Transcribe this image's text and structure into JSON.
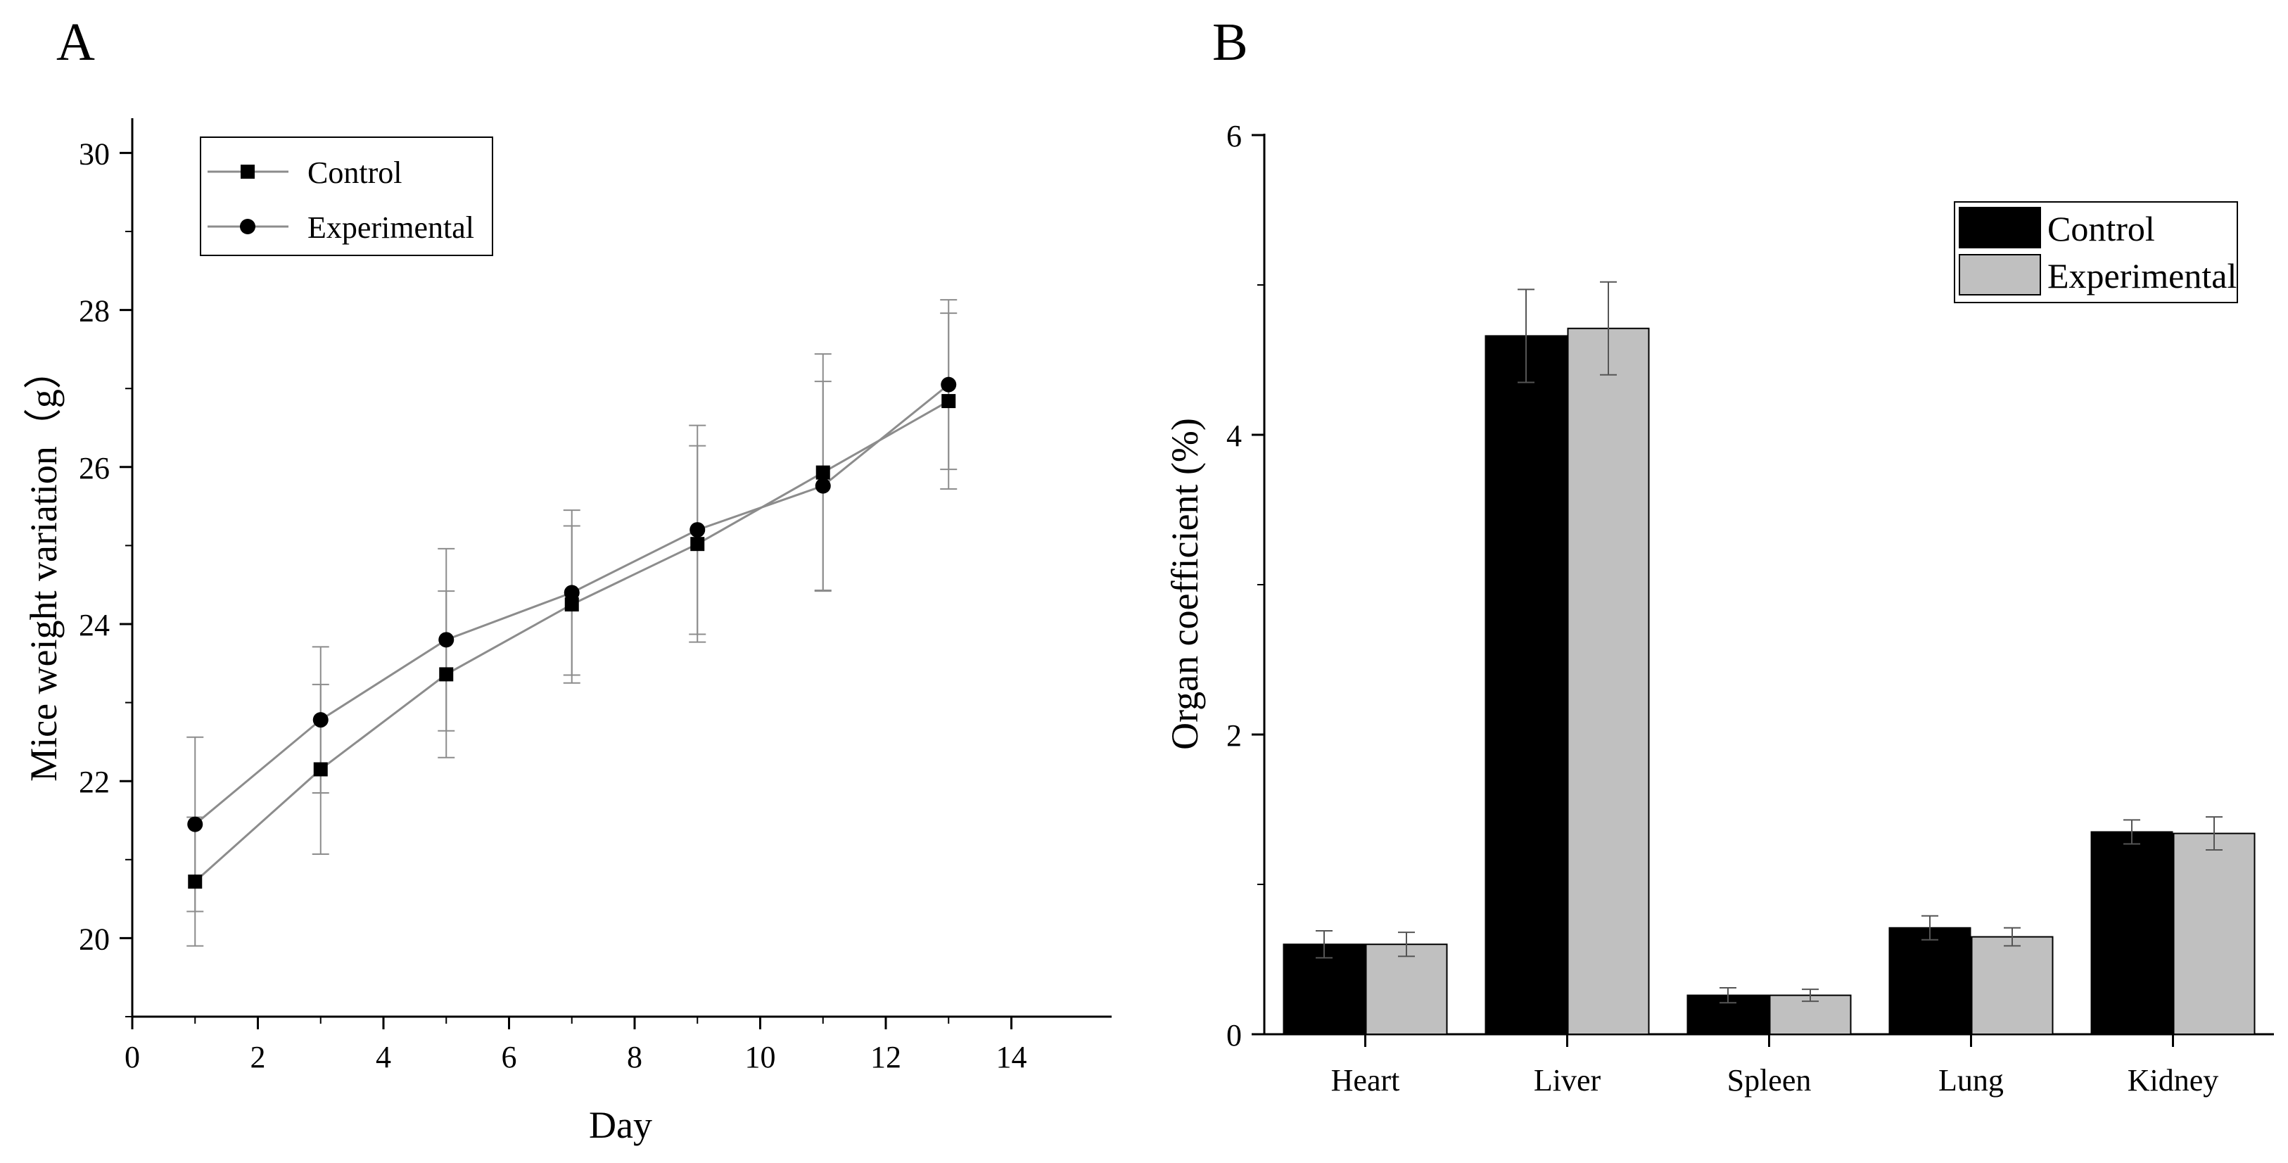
{
  "figure": {
    "panel_a_label": "A",
    "panel_b_label": "B"
  },
  "chart_data": [
    {
      "panel": "A",
      "type": "line",
      "xlabel": "Day",
      "ylabel": "Mice weight variation（g）",
      "xlim": [
        0,
        15
      ],
      "ylim": [
        19,
        30
      ],
      "xticks": [
        0,
        2,
        4,
        6,
        8,
        10,
        12,
        14
      ],
      "yticks": [
        20,
        22,
        24,
        26,
        28,
        30
      ],
      "legend_position": "top-left",
      "grid": false,
      "series": [
        {
          "name": "Control",
          "marker": "square",
          "x": [
            1,
            3,
            5,
            7,
            9,
            11,
            13
          ],
          "y": [
            20.72,
            22.15,
            23.36,
            24.25,
            25.02,
            25.93,
            26.84
          ],
          "err": [
            0.82,
            1.08,
            1.06,
            1.0,
            1.25,
            1.51,
            1.12
          ]
        },
        {
          "name": "Experimental",
          "marker": "circle",
          "x": [
            1,
            3,
            5,
            7,
            9,
            11,
            13
          ],
          "y": [
            21.45,
            22.78,
            23.8,
            24.4,
            25.2,
            25.76,
            27.05
          ],
          "err": [
            1.11,
            0.93,
            1.16,
            1.05,
            1.33,
            1.33,
            1.08
          ]
        }
      ]
    },
    {
      "panel": "B",
      "type": "bar",
      "xlabel": "",
      "ylabel": "Organ coefficient (%)",
      "ylim": [
        0,
        6
      ],
      "yticks": [
        0,
        2,
        4,
        6
      ],
      "categories": [
        "Heart",
        "Liver",
        "Spleen",
        "Lung",
        "Kidney"
      ],
      "legend_position": "top-right",
      "grid": false,
      "series": [
        {
          "name": "Control",
          "color": "#000000",
          "values": [
            0.6,
            4.66,
            0.26,
            0.71,
            1.35
          ],
          "err": [
            0.09,
            0.31,
            0.05,
            0.08,
            0.08
          ]
        },
        {
          "name": "Experimental",
          "color": "#c0c0c0",
          "values": [
            0.6,
            4.71,
            0.26,
            0.65,
            1.34
          ],
          "err": [
            0.08,
            0.31,
            0.04,
            0.06,
            0.11
          ]
        }
      ]
    }
  ]
}
